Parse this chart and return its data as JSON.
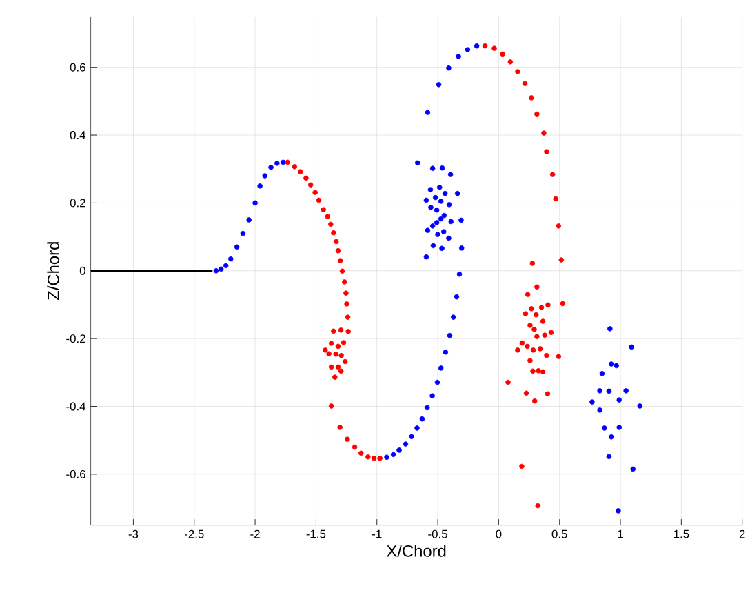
{
  "chart_data": {
    "type": "scatter",
    "xlabel": "X/Chord",
    "ylabel": "Z/Chord",
    "xlim": [
      -3.35,
      2
    ],
    "ylim": [
      -0.75,
      0.75
    ],
    "xticks": [
      -3,
      -2.5,
      -2,
      -1.5,
      -1,
      -0.5,
      0,
      0.5,
      1,
      1.5,
      2
    ],
    "yticks": [
      -0.6,
      -0.4,
      -0.2,
      0,
      0.2,
      0.4,
      0.6
    ],
    "grid": true,
    "series": [
      {
        "type": "line",
        "marker": "none",
        "color": "#000000",
        "x": [
          -3.35,
          -2.35
        ],
        "values": [
          0,
          0
        ]
      },
      {
        "marker": "circle",
        "color": "#0000ff",
        "x": [
          -2.32,
          -2.28,
          -2.24,
          -2.2,
          -2.15,
          -2.1,
          -2.05,
          -2.0,
          -1.96,
          -1.92,
          -1.87,
          -1.82,
          -1.77,
          -0.919,
          -0.865,
          -0.817,
          -0.764,
          -0.715,
          -0.67,
          -0.628,
          -0.587,
          -0.545,
          -0.503,
          -0.474,
          -0.436,
          -0.402,
          -0.372,
          -0.345,
          -0.322,
          -0.583,
          -0.492,
          -0.41,
          -0.33,
          -0.255,
          -0.18,
          -0.666,
          -0.542,
          -0.463,
          -0.395,
          -0.56,
          -0.485,
          -0.44,
          -0.338,
          -0.519,
          -0.594,
          -0.474,
          -0.406,
          -0.557,
          -0.508,
          -0.447,
          -0.474,
          -0.308,
          -0.391,
          -0.508,
          -0.542,
          -0.583,
          -0.451,
          -0.5,
          -0.41,
          -0.537,
          -0.466,
          -0.304,
          -0.594,
          0.914,
          1.091,
          0.925,
          0.967,
          0.85,
          0.831,
          0.906,
          1.046,
          0.767,
          0.99,
          1.16,
          0.831,
          0.869,
          0.99,
          0.925,
          0.906,
          1.103,
          0.982
        ],
        "values": [
          0,
          0.005,
          0.015,
          0.035,
          0.07,
          0.11,
          0.15,
          0.2,
          0.25,
          0.28,
          0.305,
          0.317,
          0.32,
          -0.55,
          -0.542,
          -0.529,
          -0.511,
          -0.489,
          -0.464,
          -0.437,
          -0.404,
          -0.369,
          -0.329,
          -0.287,
          -0.24,
          -0.191,
          -0.137,
          -0.077,
          -0.01,
          0.467,
          0.549,
          0.598,
          0.632,
          0.652,
          0.663,
          0.318,
          0.302,
          0.303,
          0.284,
          0.239,
          0.246,
          0.228,
          0.228,
          0.216,
          0.208,
          0.205,
          0.195,
          0.187,
          0.179,
          0.163,
          0.153,
          0.149,
          0.145,
          0.142,
          0.132,
          0.119,
          0.115,
          0.107,
          0.096,
          0.074,
          0.066,
          0.067,
          0.041,
          -0.171,
          -0.225,
          -0.275,
          -0.28,
          -0.303,
          -0.354,
          -0.355,
          -0.354,
          -0.387,
          -0.381,
          -0.399,
          -0.411,
          -0.464,
          -0.462,
          -0.49,
          -0.548,
          -0.585,
          -0.708
        ]
      },
      {
        "marker": "circle",
        "color": "#ff0000",
        "x": [
          -1.733,
          -1.676,
          -1.628,
          -1.582,
          -1.544,
          -1.507,
          -1.477,
          -1.439,
          -1.405,
          -1.379,
          -1.356,
          -1.334,
          -1.318,
          -1.3,
          -1.284,
          -1.266,
          -1.254,
          -1.247,
          -1.239,
          -1.235,
          -1.356,
          -1.295,
          -1.424,
          -1.374,
          -1.318,
          -1.273,
          -1.394,
          -1.337,
          -1.292,
          -1.261,
          -1.374,
          -1.318,
          -1.295,
          -1.345,
          -1.374,
          -1.303,
          -1.243,
          -1.182,
          -1.13,
          -1.073,
          -1.024,
          -0.975,
          -0.112,
          -0.036,
          0.032,
          0.096,
          0.156,
          0.216,
          0.269,
          0.314,
          0.371,
          0.394,
          0.443,
          0.469,
          0.492,
          0.515,
          0.526,
          0.277,
          0.314,
          0.239,
          0.269,
          0.352,
          0.405,
          0.221,
          0.307,
          0.363,
          0.258,
          0.292,
          0.314,
          0.379,
          0.431,
          0.193,
          0.235,
          0.156,
          0.284,
          0.341,
          0.394,
          0.492,
          0.258,
          0.281,
          0.326,
          0.363,
          0.077,
          0.227,
          0.402,
          0.296,
          0.19,
          0.322
        ],
        "values": [
          0.32,
          0.307,
          0.292,
          0.273,
          0.253,
          0.231,
          0.208,
          0.18,
          0.16,
          0.137,
          0.112,
          0.086,
          0.059,
          0.03,
          -0.001,
          -0.033,
          -0.066,
          -0.098,
          -0.137,
          -0.179,
          -0.178,
          -0.175,
          -0.234,
          -0.214,
          -0.223,
          -0.212,
          -0.245,
          -0.246,
          -0.25,
          -0.268,
          -0.284,
          -0.284,
          -0.296,
          -0.314,
          -0.399,
          -0.462,
          -0.497,
          -0.52,
          -0.538,
          -0.549,
          -0.553,
          -0.553,
          0.663,
          0.656,
          0.639,
          0.616,
          0.587,
          0.552,
          0.51,
          0.462,
          0.406,
          0.351,
          0.284,
          0.212,
          0.132,
          0.032,
          -0.097,
          0.022,
          -0.048,
          -0.07,
          -0.112,
          -0.108,
          -0.101,
          -0.127,
          -0.13,
          -0.149,
          -0.161,
          -0.173,
          -0.194,
          -0.19,
          -0.182,
          -0.213,
          -0.223,
          -0.234,
          -0.234,
          -0.23,
          -0.25,
          -0.253,
          -0.265,
          -0.296,
          -0.295,
          -0.298,
          -0.329,
          -0.361,
          -0.363,
          -0.384,
          -0.577,
          -0.693
        ]
      }
    ]
  }
}
